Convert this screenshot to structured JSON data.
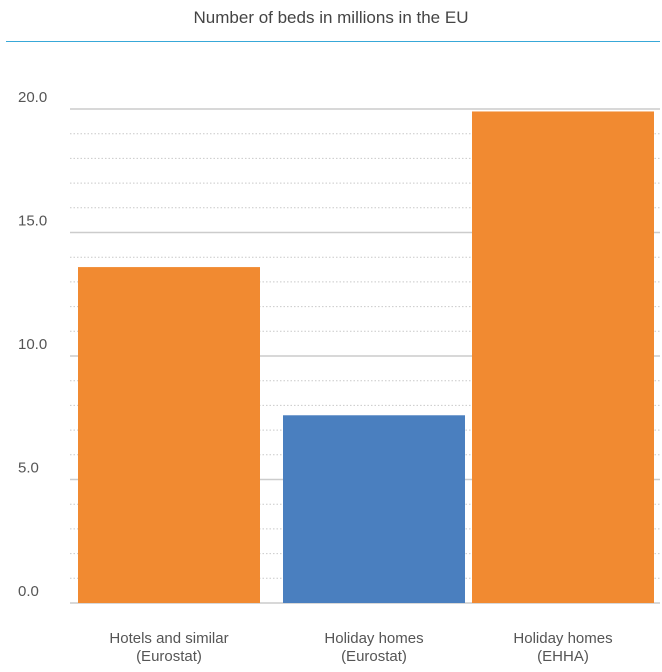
{
  "chart_data": {
    "type": "bar",
    "title": "Number of beds in millions in the EU",
    "categories": [
      [
        "Hotels and similar",
        "(Eurostat)"
      ],
      [
        "Holiday homes",
        "(Eurostat)"
      ],
      [
        "Holiday homes",
        "(EHHA)"
      ]
    ],
    "values": [
      13.6,
      7.6,
      19.9
    ],
    "bar_colors": [
      "#f18a31",
      "#4a7fbf",
      "#f18a31"
    ],
    "y_ticks": [
      "0.0",
      "5.0",
      "10.0",
      "15.0",
      "20.0"
    ],
    "ylim": [
      0,
      20
    ],
    "major_step": 5,
    "minor_step": 1,
    "grid": true,
    "xlabel": "",
    "ylabel": ""
  }
}
